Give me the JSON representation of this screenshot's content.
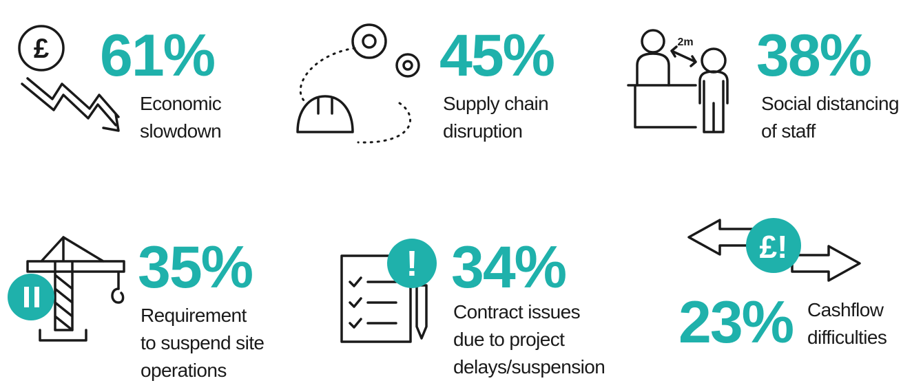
{
  "items": [
    {
      "stat": "61%",
      "label": [
        "Economic",
        "slowdown"
      ]
    },
    {
      "stat": "45%",
      "label": [
        "Supply chain",
        "disruption"
      ]
    },
    {
      "stat": "38%",
      "label": [
        "Social distancing",
        "of staff"
      ]
    },
    {
      "stat": "35%",
      "label": [
        "Requirement",
        "to suspend site",
        "operations"
      ]
    },
    {
      "stat": "34%",
      "label": [
        "Contract issues",
        "due to project",
        "delays/suspension"
      ]
    },
    {
      "stat": "23%",
      "label": [
        "Cashflow",
        "difficulties"
      ]
    }
  ],
  "icon_texts": {
    "distance": "2m",
    "pound": "£",
    "alert": "!",
    "pound_alert": "£!"
  }
}
